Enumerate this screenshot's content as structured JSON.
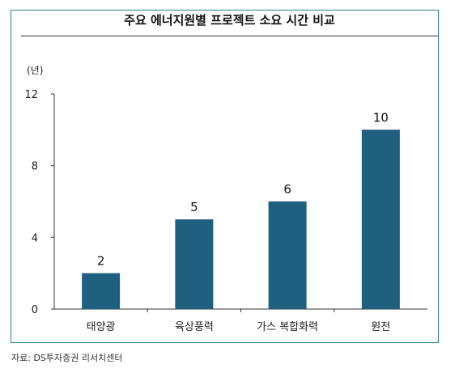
{
  "chart_data": {
    "type": "bar",
    "title": "주요 에너지원별 프로젝트 소요 시간 비교",
    "ylabel": "(년)",
    "xlabel": "",
    "categories": [
      "태양광",
      "육상풍력",
      "가스 복합화력",
      "원전"
    ],
    "values": [
      2,
      5,
      6,
      10
    ],
    "ylim": [
      0,
      12
    ],
    "yticks": [
      "0",
      "4",
      "8",
      "12"
    ],
    "data_labels": [
      "2",
      "5",
      "6",
      "10"
    ],
    "grid": false,
    "legend": "none",
    "bar_color": "#1f5f7f"
  },
  "source": "자료: DS투자증권 리서치센터"
}
